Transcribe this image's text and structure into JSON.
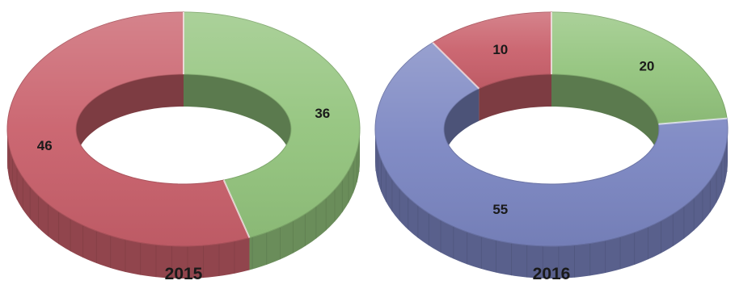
{
  "chart_data": [
    {
      "type": "pie",
      "title": "2015",
      "slices": [
        {
          "label": "36",
          "value": 36,
          "color": "#93c47d"
        },
        {
          "label": "46",
          "value": 46,
          "color": "#c9606b"
        }
      ]
    },
    {
      "type": "pie",
      "title": "2016",
      "slices": [
        {
          "label": "20",
          "value": 20,
          "color": "#93c47d"
        },
        {
          "label": "55",
          "value": 55,
          "color": "#7b86c2"
        },
        {
          "label": "10",
          "value": 10,
          "color": "#c9606b"
        }
      ]
    }
  ]
}
